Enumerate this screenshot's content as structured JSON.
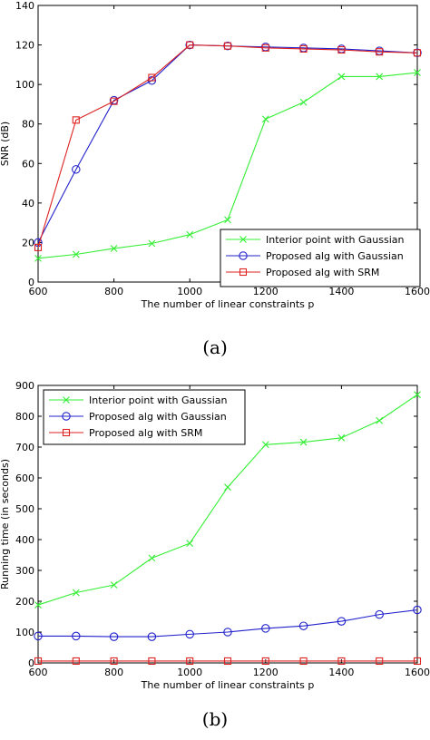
{
  "chart_data": [
    {
      "type": "line",
      "caption": "(a)",
      "xlabel": "The number of linear constraints p",
      "ylabel": "SNR (dB)",
      "xlim": [
        600,
        1600
      ],
      "ylim": [
        0,
        140
      ],
      "xticks": [
        600,
        800,
        1000,
        1200,
        1400,
        1600
      ],
      "yticks": [
        0,
        20,
        40,
        60,
        80,
        100,
        120,
        140
      ],
      "grid": false,
      "legend_position": "bottom-right",
      "series": [
        {
          "name": "Interior point with Gaussian",
          "color": "#33ee33",
          "marker": "x",
          "x": [
            600,
            700,
            800,
            900,
            1000,
            1100,
            1200,
            1300,
            1400,
            1500,
            1600
          ],
          "y": [
            12,
            14,
            17,
            19.5,
            24,
            31.5,
            82.5,
            91,
            104,
            104,
            106
          ]
        },
        {
          "name": "Proposed alg with Gaussian",
          "color": "#2222cc",
          "marker": "circle",
          "x": [
            600,
            700,
            800,
            900,
            1000,
            1100,
            1200,
            1300,
            1400,
            1500,
            1600
          ],
          "y": [
            20,
            57,
            92,
            102,
            120,
            119.5,
            119,
            118.5,
            118,
            117,
            116
          ]
        },
        {
          "name": "Proposed alg with SRM",
          "color": "#dd2222",
          "marker": "square",
          "x": [
            600,
            700,
            800,
            900,
            1000,
            1100,
            1200,
            1300,
            1400,
            1500,
            1600
          ],
          "y": [
            17.5,
            82,
            91.5,
            103.5,
            120,
            119.5,
            118.5,
            118,
            117.5,
            116.5,
            116
          ]
        }
      ]
    },
    {
      "type": "line",
      "caption": "(b)",
      "xlabel": "The number of linear constraints p",
      "ylabel": "Running time (in seconds)",
      "xlim": [
        600,
        1600
      ],
      "ylim": [
        0,
        900
      ],
      "xticks": [
        600,
        800,
        1000,
        1200,
        1400,
        1600
      ],
      "yticks": [
        0,
        100,
        200,
        300,
        400,
        500,
        600,
        700,
        800,
        900
      ],
      "grid": false,
      "legend_position": "top-left",
      "series": [
        {
          "name": "Interior point with Gaussian",
          "color": "#33ee33",
          "marker": "x",
          "x": [
            600,
            700,
            800,
            900,
            1000,
            1100,
            1200,
            1300,
            1400,
            1500,
            1600
          ],
          "y": [
            188,
            228,
            253,
            340,
            388,
            570,
            708,
            716,
            730,
            786,
            870
          ]
        },
        {
          "name": "Proposed alg with Gaussian",
          "color": "#2222cc",
          "marker": "circle",
          "x": [
            600,
            700,
            800,
            900,
            1000,
            1100,
            1200,
            1300,
            1400,
            1500,
            1600
          ],
          "y": [
            87,
            87,
            85,
            85,
            93,
            100,
            112,
            120,
            135,
            157,
            172
          ]
        },
        {
          "name": "Proposed alg with SRM",
          "color": "#dd2222",
          "marker": "square",
          "x": [
            600,
            700,
            800,
            900,
            1000,
            1100,
            1200,
            1300,
            1400,
            1500,
            1600
          ],
          "y": [
            6,
            6,
            6,
            6,
            6,
            6,
            6,
            6,
            6,
            6,
            6
          ]
        }
      ]
    }
  ]
}
